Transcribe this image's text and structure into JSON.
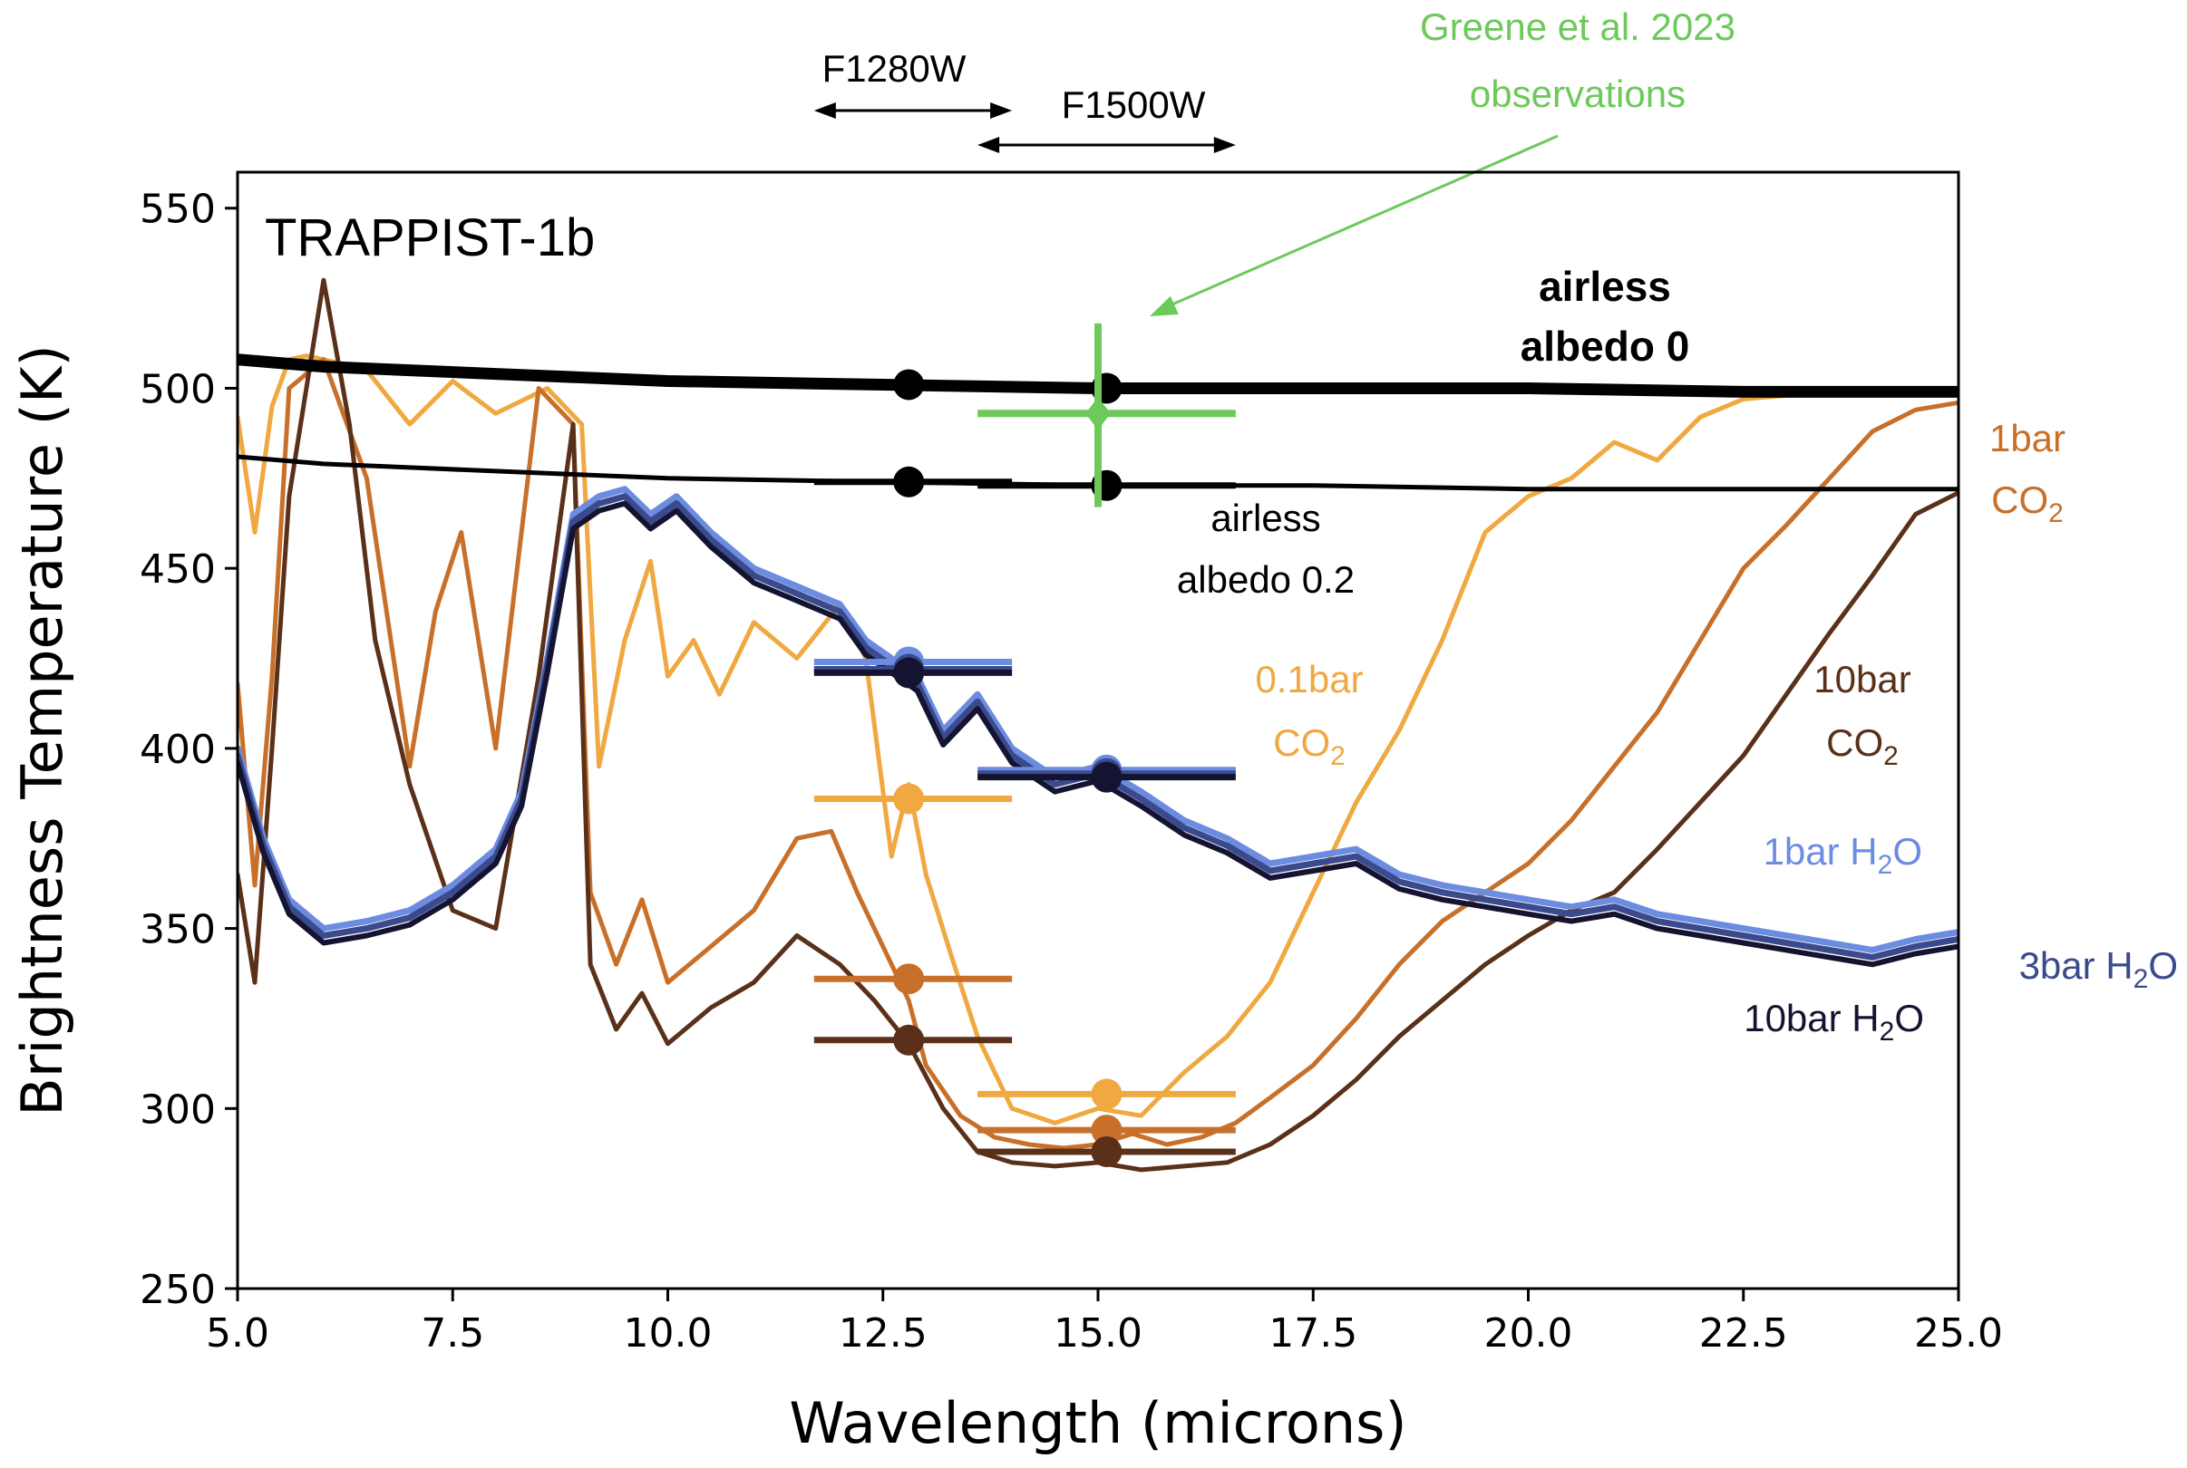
{
  "chart_data": {
    "type": "line",
    "title": "TRAPPIST-1b",
    "xlabel": "Wavelength (microns)",
    "ylabel": "Brightness Temperature (K)",
    "xlim": [
      5.0,
      25.0
    ],
    "ylim": [
      250,
      560
    ],
    "xticks": [
      "5.0",
      "7.5",
      "10.0",
      "12.5",
      "15.0",
      "17.5",
      "20.0",
      "22.5",
      "25.0"
    ],
    "yticks": [
      "250",
      "300",
      "350",
      "400",
      "450",
      "500",
      "550"
    ],
    "grid": false,
    "series": [
      {
        "name": "airless albedo 0",
        "color": "#000000",
        "width": 13,
        "x": [
          5.0,
          6.0,
          7.0,
          8.0,
          10.0,
          12.5,
          15.0,
          17.5,
          20.0,
          22.5,
          25.0
        ],
        "y": [
          508,
          506,
          505,
          504,
          502,
          501,
          500,
          500,
          500,
          499,
          499
        ]
      },
      {
        "name": "airless albedo 0.2",
        "color": "#000000",
        "width": 5,
        "x": [
          5.0,
          6.0,
          7.0,
          8.0,
          10.0,
          12.5,
          15.0,
          17.5,
          20.0,
          22.5,
          25.0
        ],
        "y": [
          481,
          479,
          478,
          477,
          475,
          474,
          473,
          473,
          472,
          472,
          472
        ]
      },
      {
        "name": "0.1bar CO2",
        "color": "#F0A840",
        "width": 5,
        "x": [
          5.0,
          5.2,
          5.4,
          5.6,
          5.8,
          6.0,
          6.5,
          7.0,
          7.5,
          8.0,
          8.6,
          9.0,
          9.2,
          9.5,
          9.8,
          10.0,
          10.3,
          10.6,
          11.0,
          11.5,
          12.0,
          12.3,
          12.6,
          12.8,
          13.0,
          13.3,
          13.6,
          14.0,
          14.5,
          15.0,
          15.5,
          16.0,
          16.5,
          17.0,
          17.5,
          18.0,
          18.5,
          19.0,
          19.5,
          20.0,
          20.5,
          21.0,
          21.5,
          22.0,
          22.5,
          23.0,
          24.0,
          25.0
        ],
        "y": [
          492,
          460,
          495,
          508,
          509,
          508,
          505,
          490,
          502,
          493,
          500,
          490,
          395,
          430,
          452,
          420,
          430,
          415,
          435,
          425,
          440,
          425,
          370,
          390,
          365,
          342,
          320,
          300,
          296,
          300,
          298,
          310,
          320,
          335,
          360,
          385,
          405,
          430,
          460,
          470,
          475,
          485,
          480,
          492,
          497,
          498,
          499,
          499
        ]
      },
      {
        "name": "1bar CO2",
        "color": "#C8702A",
        "width": 5,
        "x": [
          5.0,
          5.2,
          5.4,
          5.6,
          6.0,
          6.5,
          7.0,
          7.3,
          7.6,
          8.0,
          8.5,
          8.9,
          9.1,
          9.4,
          9.7,
          10.0,
          10.5,
          11.0,
          11.5,
          11.9,
          12.2,
          12.5,
          12.8,
          13.0,
          13.4,
          13.8,
          14.2,
          14.6,
          15.0,
          15.4,
          15.8,
          16.2,
          16.6,
          17.0,
          17.5,
          18.0,
          18.5,
          19.0,
          19.5,
          20.0,
          20.5,
          21.0,
          21.5,
          22.0,
          22.5,
          23.0,
          23.5,
          24.0,
          24.5,
          25.0
        ],
        "y": [
          418,
          362,
          420,
          500,
          508,
          475,
          395,
          438,
          460,
          400,
          500,
          490,
          360,
          340,
          358,
          335,
          345,
          355,
          375,
          377,
          360,
          345,
          330,
          312,
          298,
          292,
          290,
          289,
          290,
          293,
          290,
          292,
          296,
          303,
          312,
          325,
          340,
          352,
          360,
          368,
          380,
          395,
          410,
          430,
          450,
          462,
          475,
          488,
          494,
          496
        ]
      },
      {
        "name": "10bar CO2",
        "color": "#5A3018",
        "width": 5,
        "x": [
          5.0,
          5.2,
          5.4,
          5.6,
          5.8,
          6.0,
          6.3,
          6.6,
          7.0,
          7.5,
          8.0,
          8.5,
          8.9,
          9.1,
          9.4,
          9.7,
          10.0,
          10.5,
          11.0,
          11.5,
          12.0,
          12.4,
          12.8,
          13.2,
          13.6,
          14.0,
          14.5,
          15.0,
          15.5,
          16.0,
          16.5,
          17.0,
          17.5,
          18.0,
          18.5,
          19.0,
          19.5,
          20.0,
          20.5,
          21.0,
          21.5,
          22.0,
          22.5,
          23.0,
          23.5,
          24.0,
          24.5,
          25.0
        ],
        "y": [
          365,
          335,
          400,
          470,
          500,
          530,
          490,
          430,
          390,
          355,
          350,
          420,
          490,
          340,
          322,
          332,
          318,
          328,
          335,
          348,
          340,
          330,
          318,
          300,
          288,
          285,
          284,
          285,
          283,
          284,
          285,
          290,
          298,
          308,
          320,
          330,
          340,
          348,
          355,
          360,
          372,
          385,
          398,
          415,
          432,
          448,
          465,
          471
        ]
      },
      {
        "name": "1bar H2O",
        "color": "#6C8CE0",
        "width": 7,
        "x": [
          5.0,
          5.3,
          5.6,
          6.0,
          6.5,
          7.0,
          7.5,
          8.0,
          8.3,
          8.6,
          8.9,
          9.2,
          9.5,
          9.8,
          10.1,
          10.5,
          11.0,
          11.5,
          12.0,
          12.3,
          12.6,
          12.9,
          13.2,
          13.6,
          14.0,
          14.5,
          15.0,
          15.5,
          16.0,
          16.5,
          17.0,
          17.5,
          18.0,
          18.5,
          19.0,
          19.5,
          20.0,
          20.5,
          21.0,
          21.5,
          22.0,
          22.5,
          23.0,
          23.5,
          24.0,
          24.5,
          25.0
        ],
        "y": [
          400,
          375,
          358,
          350,
          352,
          355,
          362,
          372,
          388,
          425,
          465,
          470,
          472,
          465,
          470,
          460,
          450,
          445,
          440,
          430,
          425,
          420,
          405,
          415,
          400,
          392,
          395,
          388,
          380,
          375,
          368,
          370,
          372,
          365,
          362,
          360,
          358,
          356,
          358,
          354,
          352,
          350,
          348,
          346,
          344,
          347,
          349
        ]
      },
      {
        "name": "3bar H2O",
        "color": "#3A4A8C",
        "width": 7,
        "x": [
          5.0,
          5.3,
          5.6,
          6.0,
          6.5,
          7.0,
          7.5,
          8.0,
          8.3,
          8.6,
          8.9,
          9.2,
          9.5,
          9.8,
          10.1,
          10.5,
          11.0,
          11.5,
          12.0,
          12.3,
          12.6,
          12.9,
          13.2,
          13.6,
          14.0,
          14.5,
          15.0,
          15.5,
          16.0,
          16.5,
          17.0,
          17.5,
          18.0,
          18.5,
          19.0,
          19.5,
          20.0,
          20.5,
          21.0,
          21.5,
          22.0,
          22.5,
          23.0,
          23.5,
          24.0,
          24.5,
          25.0
        ],
        "y": [
          398,
          373,
          356,
          348,
          350,
          353,
          360,
          370,
          386,
          423,
          463,
          468,
          470,
          463,
          468,
          458,
          448,
          443,
          438,
          428,
          423,
          418,
          403,
          413,
          398,
          390,
          393,
          386,
          378,
          373,
          366,
          368,
          370,
          363,
          360,
          358,
          356,
          354,
          356,
          352,
          350,
          348,
          346,
          344,
          342,
          345,
          347
        ]
      },
      {
        "name": "10bar H2O",
        "color": "#141432",
        "width": 6,
        "x": [
          5.0,
          5.3,
          5.6,
          6.0,
          6.5,
          7.0,
          7.5,
          8.0,
          8.3,
          8.6,
          8.9,
          9.2,
          9.5,
          9.8,
          10.1,
          10.5,
          11.0,
          11.5,
          12.0,
          12.3,
          12.6,
          12.9,
          13.2,
          13.6,
          14.0,
          14.5,
          15.0,
          15.5,
          16.0,
          16.5,
          17.0,
          17.5,
          18.0,
          18.5,
          19.0,
          19.5,
          20.0,
          20.5,
          21.0,
          21.5,
          22.0,
          22.5,
          23.0,
          23.5,
          24.0,
          24.5,
          25.0
        ],
        "y": [
          396,
          371,
          354,
          346,
          348,
          351,
          358,
          368,
          384,
          421,
          461,
          466,
          468,
          461,
          466,
          456,
          446,
          441,
          436,
          426,
          421,
          416,
          401,
          411,
          396,
          388,
          391,
          384,
          376,
          371,
          364,
          366,
          368,
          361,
          358,
          356,
          354,
          352,
          354,
          350,
          348,
          346,
          344,
          342,
          340,
          343,
          345
        ]
      }
    ],
    "band_points": [
      {
        "series": "airless albedo 0",
        "color": "#000000",
        "x": 12.8,
        "y": 501,
        "xmin": 11.7,
        "xmax": 14.0
      },
      {
        "series": "airless albedo 0",
        "color": "#000000",
        "x": 15.1,
        "y": 500,
        "xmin": 13.6,
        "xmax": 16.6
      },
      {
        "series": "airless albedo 0.2",
        "color": "#000000",
        "x": 12.8,
        "y": 474,
        "xmin": 11.7,
        "xmax": 14.0
      },
      {
        "series": "airless albedo 0.2",
        "color": "#000000",
        "x": 15.1,
        "y": 473,
        "xmin": 13.6,
        "xmax": 16.6
      },
      {
        "series": "1bar H2O",
        "color": "#6C8CE0",
        "x": 12.8,
        "y": 424,
        "xmin": 11.7,
        "xmax": 14.0
      },
      {
        "series": "3bar H2O",
        "color": "#3A4A8C",
        "x": 12.8,
        "y": 422,
        "xmin": 11.7,
        "xmax": 14.0
      },
      {
        "series": "10bar H2O",
        "color": "#141432",
        "x": 12.8,
        "y": 421,
        "xmin": 11.7,
        "xmax": 14.0
      },
      {
        "series": "1bar H2O",
        "color": "#6C8CE0",
        "x": 15.1,
        "y": 394,
        "xmin": 13.6,
        "xmax": 16.6
      },
      {
        "series": "3bar H2O",
        "color": "#3A4A8C",
        "x": 15.1,
        "y": 393,
        "xmin": 13.6,
        "xmax": 16.6
      },
      {
        "series": "10bar H2O",
        "color": "#141432",
        "x": 15.1,
        "y": 392,
        "xmin": 13.6,
        "xmax": 16.6
      },
      {
        "series": "0.1bar CO2",
        "color": "#F0A840",
        "x": 12.8,
        "y": 386,
        "xmin": 11.7,
        "xmax": 14.0
      },
      {
        "series": "0.1bar CO2",
        "color": "#F0A840",
        "x": 15.1,
        "y": 304,
        "xmin": 13.6,
        "xmax": 16.6
      },
      {
        "series": "1bar CO2",
        "color": "#C8702A",
        "x": 12.8,
        "y": 336,
        "xmin": 11.7,
        "xmax": 14.0
      },
      {
        "series": "1bar CO2",
        "color": "#C8702A",
        "x": 15.1,
        "y": 294,
        "xmin": 13.6,
        "xmax": 16.6
      },
      {
        "series": "10bar CO2",
        "color": "#5A3018",
        "x": 12.8,
        "y": 319,
        "xmin": 11.7,
        "xmax": 14.0
      },
      {
        "series": "10bar CO2",
        "color": "#5A3018",
        "x": 15.1,
        "y": 288,
        "xmin": 13.6,
        "xmax": 16.6
      }
    ],
    "observation": {
      "label_line1": "Greene et al. 2023",
      "label_line2": "observations",
      "color": "#6DC95A",
      "x": 15.0,
      "y": 493,
      "xerr_low": 13.6,
      "xerr_high": 16.6,
      "yerr_low": 467,
      "yerr_high": 518
    },
    "filters": [
      {
        "label": "F1280W",
        "xmin": 11.7,
        "xmax": 14.0
      },
      {
        "label": "F1500W",
        "xmin": 13.6,
        "xmax": 16.6
      }
    ],
    "annotations": {
      "airless0_line1": "airless",
      "airless0_line2": "albedo 0",
      "airless02_line1": "airless",
      "airless02_line2": "albedo 0.2",
      "co2_01_line1": "0.1bar",
      "co2_01_line2": "CO",
      "co2_1_line1": "1bar",
      "co2_1_line2": "CO",
      "co2_10_line1": "10bar",
      "co2_10_line2": "CO",
      "h2o_1": "1bar H",
      "h2o_3": "3bar H",
      "h2o_10": "10bar H",
      "sub_2": "2",
      "oxygen": "O"
    }
  }
}
